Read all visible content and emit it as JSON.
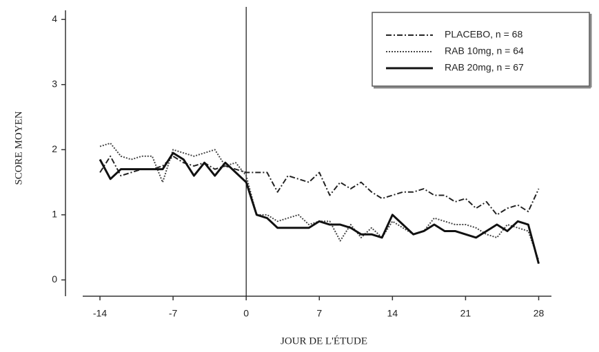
{
  "chart_data": {
    "type": "line",
    "xlabel": "JOUR DE L'ÉTUDE",
    "ylabel": "SCORE MOYEN",
    "x": [
      -14,
      -13,
      -12,
      -11,
      -10,
      -9,
      -8,
      -7,
      -6,
      -5,
      -4,
      -3,
      -2,
      -1,
      0,
      1,
      2,
      3,
      4,
      5,
      6,
      7,
      8,
      9,
      10,
      11,
      12,
      13,
      14,
      15,
      16,
      17,
      18,
      19,
      20,
      21,
      22,
      23,
      24,
      25,
      26,
      27,
      28
    ],
    "series": [
      {
        "name": "PLACEBO, n = 68",
        "color": "#222222",
        "style": "dashdot",
        "values": [
          1.65,
          1.9,
          1.6,
          1.65,
          1.7,
          1.7,
          1.75,
          1.9,
          1.8,
          1.75,
          1.8,
          1.7,
          1.75,
          1.7,
          1.65,
          1.65,
          1.65,
          1.35,
          1.6,
          1.55,
          1.5,
          1.65,
          1.3,
          1.5,
          1.4,
          1.5,
          1.35,
          1.25,
          1.3,
          1.35,
          1.35,
          1.4,
          1.3,
          1.3,
          1.2,
          1.25,
          1.1,
          1.2,
          1.0,
          1.1,
          1.15,
          1.05,
          1.4
        ]
      },
      {
        "name": "RAB 10mg, n = 64",
        "color": "#444444",
        "style": "dotted",
        "values": [
          2.05,
          2.1,
          1.9,
          1.85,
          1.9,
          1.9,
          1.5,
          2.0,
          1.95,
          1.9,
          1.95,
          2.0,
          1.75,
          1.8,
          1.6,
          1.0,
          1.0,
          0.9,
          0.95,
          1.0,
          0.85,
          0.9,
          0.9,
          0.6,
          0.85,
          0.65,
          0.8,
          0.65,
          0.9,
          0.8,
          0.7,
          0.75,
          0.95,
          0.9,
          0.85,
          0.85,
          0.8,
          0.7,
          0.65,
          0.85,
          0.8,
          0.75,
          0.3
        ]
      },
      {
        "name": "RAB 20mg, n = 67",
        "color": "#111111",
        "style": "solid",
        "values": [
          1.85,
          1.55,
          1.7,
          1.7,
          1.7,
          1.7,
          1.7,
          1.95,
          1.85,
          1.6,
          1.8,
          1.6,
          1.8,
          1.65,
          1.5,
          1.0,
          0.95,
          0.8,
          0.8,
          0.8,
          0.8,
          0.9,
          0.85,
          0.85,
          0.8,
          0.7,
          0.7,
          0.65,
          1.0,
          0.85,
          0.7,
          0.75,
          0.85,
          0.75,
          0.75,
          0.7,
          0.65,
          0.75,
          0.85,
          0.75,
          0.9,
          0.85,
          0.25
        ]
      }
    ],
    "vline": 0,
    "xlim": [
      -17.3,
      31.2
    ],
    "xticks": [
      -14,
      -7,
      0,
      7,
      14,
      21,
      28
    ],
    "ylim": [
      -0.25,
      4.14
    ],
    "yticks": [
      0,
      1,
      2,
      3,
      4
    ],
    "legend": "upper right"
  }
}
